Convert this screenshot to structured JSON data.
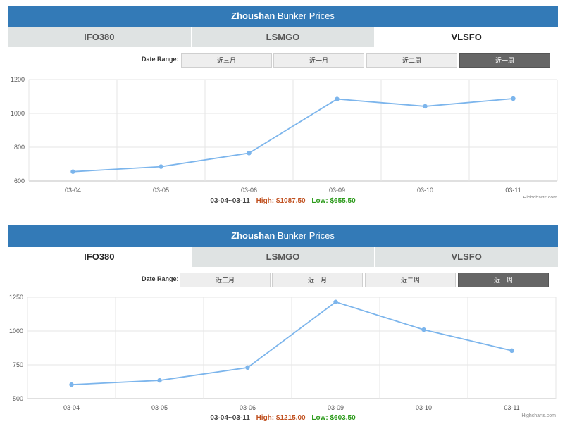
{
  "panels": [
    {
      "title_a": "Zhoushan",
      "title_b": "Bunker Prices",
      "tabs": [
        "IFO380",
        "LSMGO",
        "VLSFO"
      ],
      "active_tab": 2,
      "date_range_label": "Date Range:",
      "ranges": [
        "近三月",
        "近一月",
        "近二周",
        "近一周"
      ],
      "active_range": 3,
      "summary": {
        "period": "03-04~03-11",
        "high": "High: $1087.50",
        "low": "Low: $655.50"
      },
      "credits": "Highcharts.com"
    },
    {
      "title_a": "Zhoushan",
      "title_b": "Bunker Prices",
      "tabs": [
        "IFO380",
        "LSMGO",
        "VLSFO"
      ],
      "active_tab": 0,
      "date_range_label": "Date Range:",
      "ranges": [
        "近三月",
        "近一月",
        "近二周",
        "近一周"
      ],
      "active_range": 3,
      "summary": {
        "period": "03-04~03-11",
        "high": "High: $1215.00",
        "low": "Low: $603.50"
      },
      "credits": "Highcharts.com"
    }
  ],
  "chart_data": [
    {
      "type": "line",
      "title": "",
      "categories": [
        "03-04",
        "03-05",
        "03-06",
        "03-09",
        "03-10",
        "03-11"
      ],
      "series": [
        {
          "values": [
            655.5,
            685,
            765,
            1085,
            1042,
            1087.5
          ]
        }
      ],
      "yticks": [
        600,
        800,
        1000,
        1200
      ],
      "ylim": [
        600,
        1200
      ],
      "grid": true,
      "color": "#7cb5ec"
    },
    {
      "type": "line",
      "title": "",
      "categories": [
        "03-04",
        "03-05",
        "03-06",
        "03-09",
        "03-10",
        "03-11"
      ],
      "series": [
        {
          "values": [
            603.5,
            635,
            730,
            1215,
            1010,
            855
          ]
        }
      ],
      "yticks": [
        500,
        750,
        1000,
        1250
      ],
      "ylim": [
        500,
        1250
      ],
      "grid": true,
      "color": "#7cb5ec"
    }
  ]
}
